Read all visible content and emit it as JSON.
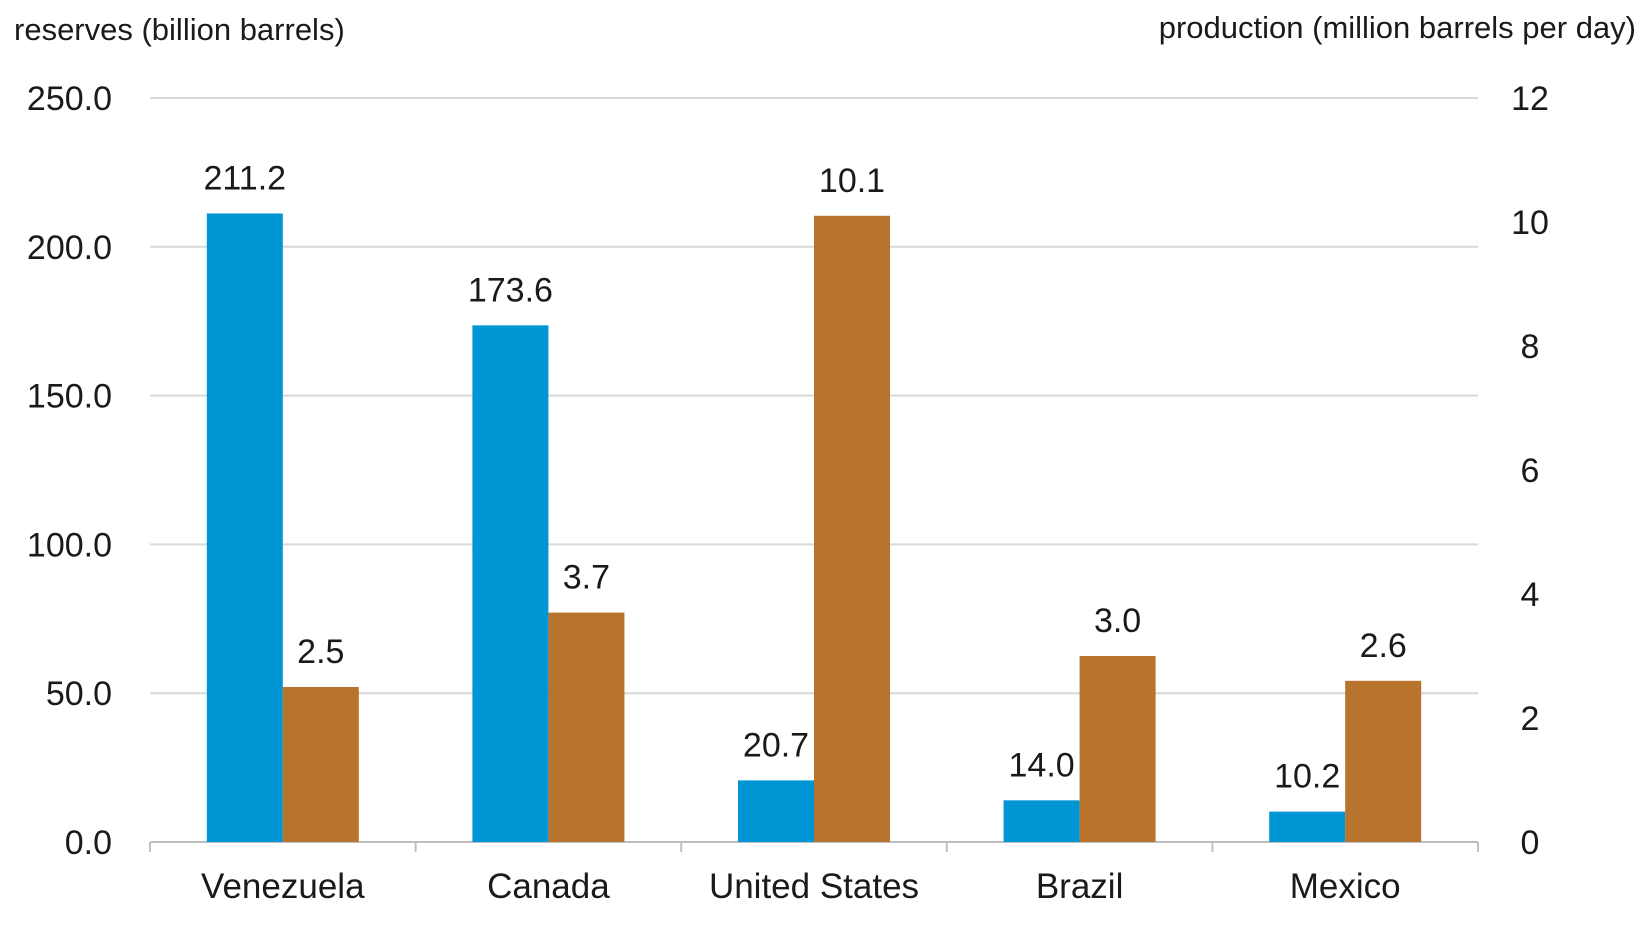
{
  "chart_data": {
    "type": "bar",
    "categories": [
      "Venezuela",
      "Canada",
      "United States",
      "Brazil",
      "Mexico"
    ],
    "series": [
      {
        "axis": "left",
        "color": "#0096d6",
        "values": [
          211.2,
          173.6,
          20.7,
          14.0,
          10.2
        ],
        "labels": [
          "211.2",
          "173.6",
          "20.7",
          "14.0",
          "10.2"
        ]
      },
      {
        "axis": "right",
        "color": "#b8732d",
        "values": [
          2.5,
          3.7,
          10.1,
          3.0,
          2.6
        ],
        "labels": [
          "2.5",
          "3.7",
          "10.1",
          "3.0",
          "2.6"
        ]
      }
    ],
    "ylabel_left": "reserves (billion barrels)",
    "ylabel_right": "production (million barrels per day)",
    "ylim_left": [
      0,
      250
    ],
    "ylim_right": [
      0,
      12
    ],
    "yticks_left": [
      "0.0",
      "50.0",
      "100.0",
      "150.0",
      "200.0",
      "250.0"
    ],
    "yticks_right": [
      "0",
      "2",
      "4",
      "6",
      "8",
      "10",
      "12"
    ],
    "grid": true
  }
}
